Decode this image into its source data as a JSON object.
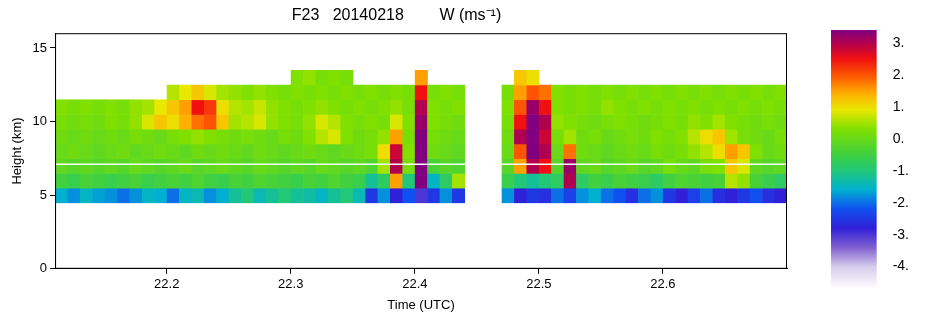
{
  "chart_data": {
    "type": "heatmap",
    "title": "F23   20140218        W (ms⁻¹)",
    "x_label": "Time (UTC)",
    "y_label": "Height (km)",
    "xlim": [
      22.11,
      22.7
    ],
    "xticks": [
      22.2,
      22.3,
      22.4,
      22.5,
      22.6
    ],
    "ylim": [
      0,
      16
    ],
    "yticks": [
      0,
      5,
      10,
      15
    ],
    "grid": false,
    "legend": false,
    "flight_level": 7.1,
    "x": [
      22.115,
      22.125,
      22.135,
      22.145,
      22.155,
      22.165,
      22.175,
      22.185,
      22.195,
      22.205,
      22.215,
      22.225,
      22.235,
      22.245,
      22.255,
      22.265,
      22.275,
      22.285,
      22.295,
      22.305,
      22.315,
      22.325,
      22.335,
      22.345,
      22.355,
      22.365,
      22.375,
      22.385,
      22.395,
      22.405,
      22.415,
      22.425,
      22.435,
      22.445,
      22.455,
      22.465,
      22.475,
      22.485,
      22.495,
      22.505,
      22.515,
      22.525,
      22.535,
      22.545,
      22.555,
      22.565,
      22.575,
      22.585,
      22.595,
      22.605,
      22.615,
      22.625,
      22.635,
      22.645,
      22.655,
      22.665,
      22.675,
      22.685,
      22.695
    ],
    "y": [
      5,
      6,
      7,
      8,
      9,
      10,
      11,
      12,
      13
    ],
    "values": [
      [
        -1.6,
        -1.8,
        -1.5,
        -1.7,
        -1.8,
        -2.0,
        -1.8,
        -1.5,
        -1.6,
        -2.0,
        -1.5,
        -1.4,
        -1.8,
        -1.6,
        -1.2,
        -1.0,
        -1.4,
        -1.2,
        -1.0,
        -1.2,
        -1.3,
        -1.5,
        -1.2,
        -1.0,
        -1.4,
        -2.5,
        -1.8,
        -2.8,
        -2.2,
        -3.0,
        -2.5,
        -1.8,
        -2.5,
        null,
        null,
        null,
        -1.8,
        -2.8,
        -2.5,
        -2.6,
        -2.0,
        -2.4,
        -1.8,
        -1.6,
        -2.0,
        -2.2,
        -2.6,
        -2.0,
        -1.8,
        -2.5,
        -2.8,
        -2.4,
        -2.0,
        -2.6,
        -2.8,
        -2.5,
        -2.2,
        -2.6,
        -2.8
      ],
      [
        -0.5,
        -0.6,
        -0.4,
        -0.5,
        -0.6,
        -0.5,
        -0.4,
        -0.6,
        -0.5,
        -0.4,
        -0.5,
        -0.3,
        -0.5,
        -0.6,
        -0.4,
        -0.5,
        -0.3,
        -0.4,
        -0.5,
        -0.6,
        -0.4,
        -0.5,
        -0.3,
        -0.5,
        -0.6,
        -1.2,
        -0.8,
        1.5,
        -1.0,
        3.5,
        -1.5,
        -0.8,
        0.5,
        null,
        null,
        null,
        -0.6,
        -1.0,
        -1.2,
        -1.0,
        -0.8,
        3.0,
        -0.8,
        -0.5,
        -0.6,
        -0.4,
        -0.5,
        -0.6,
        -0.8,
        -0.5,
        -0.3,
        -0.4,
        -0.5,
        -0.4,
        0.6,
        0.4,
        -0.4,
        -0.6,
        -0.8
      ],
      [
        -0.1,
        -0.2,
        -0.1,
        -0.2,
        -0.1,
        -0.2,
        0.0,
        -0.1,
        -0.2,
        -0.1,
        0.0,
        -0.2,
        -0.1,
        0.0,
        -0.1,
        -0.2,
        0.0,
        -0.1,
        -0.2,
        -0.1,
        -0.2,
        0.0,
        -0.1,
        -0.2,
        -0.1,
        -0.3,
        0.5,
        3.0,
        0.2,
        3.5,
        -0.4,
        -0.2,
        -0.3,
        null,
        null,
        null,
        -0.2,
        1.5,
        3.0,
        2.5,
        -0.2,
        3.2,
        -0.1,
        0.0,
        -0.2,
        -0.1,
        0.0,
        -0.2,
        -0.1,
        0.2,
        0.0,
        -0.1,
        0.2,
        0.3,
        1.2,
        0.8,
        -0.1,
        -0.2,
        -0.1
      ],
      [
        0.0,
        0.1,
        0.0,
        -0.1,
        0.0,
        0.1,
        -0.1,
        0.0,
        0.1,
        0.0,
        -0.1,
        0.1,
        0.0,
        0.1,
        0.0,
        -0.1,
        0.1,
        0.0,
        -0.1,
        0.0,
        0.1,
        0.0,
        -0.1,
        0.0,
        0.1,
        0.2,
        1.0,
        2.8,
        0.3,
        3.5,
        0.1,
        0.0,
        -0.1,
        null,
        null,
        null,
        0.0,
        2.0,
        3.5,
        3.0,
        0.0,
        1.8,
        0.1,
        0.0,
        -0.1,
        0.0,
        0.1,
        0.0,
        0.2,
        0.1,
        0.2,
        0.4,
        0.6,
        1.0,
        1.5,
        1.2,
        0.3,
        0.0,
        0.1
      ],
      [
        0.1,
        0.0,
        0.1,
        0.0,
        0.1,
        0.0,
        0.2,
        0.1,
        0.0,
        0.2,
        0.3,
        0.4,
        0.3,
        0.2,
        0.1,
        0.2,
        0.1,
        0.0,
        0.2,
        0.1,
        0.3,
        0.6,
        0.8,
        0.3,
        0.1,
        0.2,
        0.4,
        1.5,
        0.2,
        3.5,
        0.2,
        0.1,
        0.0,
        null,
        null,
        null,
        0.1,
        3.0,
        3.5,
        2.8,
        0.2,
        0.5,
        0.1,
        0.2,
        0.0,
        0.1,
        0.2,
        0.1,
        0.3,
        0.2,
        0.3,
        0.6,
        1.0,
        1.2,
        0.5,
        0.2,
        0.1,
        0.0,
        0.2
      ],
      [
        0.2,
        0.1,
        0.2,
        0.1,
        0.3,
        0.2,
        0.4,
        0.8,
        1.2,
        1.0,
        1.4,
        1.8,
        2.0,
        1.2,
        0.5,
        0.6,
        0.8,
        0.4,
        0.3,
        0.2,
        0.4,
        0.8,
        0.6,
        0.3,
        0.2,
        0.3,
        0.2,
        0.8,
        0.3,
        3.2,
        0.3,
        0.2,
        0.1,
        null,
        null,
        null,
        0.2,
        2.5,
        3.5,
        3.0,
        0.4,
        0.3,
        0.2,
        0.1,
        0.2,
        0.3,
        0.2,
        0.1,
        0.2,
        0.3,
        0.2,
        0.4,
        0.3,
        0.5,
        0.3,
        0.2,
        0.1,
        0.2,
        0.1
      ],
      [
        0.3,
        0.2,
        0.3,
        0.2,
        0.3,
        0.2,
        0.4,
        0.5,
        0.9,
        1.2,
        1.5,
        2.5,
        2.2,
        1.0,
        0.6,
        0.5,
        0.7,
        0.4,
        0.3,
        0.2,
        0.3,
        0.4,
        0.3,
        0.2,
        0.3,
        0.2,
        0.3,
        0.4,
        0.2,
        3.0,
        0.3,
        0.2,
        0.3,
        null,
        null,
        null,
        0.3,
        2.0,
        3.2,
        2.5,
        0.3,
        0.2,
        0.3,
        0.2,
        0.4,
        0.3,
        0.2,
        0.3,
        0.2,
        0.3,
        0.2,
        0.3,
        0.2,
        0.3,
        0.2,
        0.3,
        0.2,
        0.3,
        0.2
      ],
      [
        null,
        null,
        null,
        null,
        null,
        null,
        null,
        null,
        null,
        0.6,
        0.9,
        1.2,
        0.8,
        0.5,
        0.4,
        0.3,
        0.4,
        0.3,
        0.2,
        0.3,
        0.2,
        0.3,
        0.2,
        0.3,
        0.2,
        0.3,
        0.2,
        0.3,
        0.2,
        2.5,
        0.2,
        0.3,
        0.2,
        null,
        null,
        null,
        0.2,
        1.5,
        2.0,
        1.8,
        0.3,
        0.2,
        0.3,
        0.2,
        0.3,
        0.2,
        0.3,
        0.2,
        0.3,
        0.2,
        0.3,
        0.2,
        0.3,
        0.2,
        0.3,
        0.2,
        0.3,
        0.2,
        0.3
      ],
      [
        null,
        null,
        null,
        null,
        null,
        null,
        null,
        null,
        null,
        null,
        null,
        null,
        null,
        null,
        null,
        null,
        null,
        null,
        null,
        0.3,
        0.4,
        0.2,
        0.3,
        0.2,
        null,
        null,
        null,
        null,
        null,
        1.5,
        null,
        null,
        null,
        null,
        null,
        null,
        null,
        1.2,
        1.0,
        null,
        null,
        null,
        null,
        null,
        null,
        null,
        null,
        null,
        null,
        null,
        null,
        null,
        null,
        null,
        null,
        null,
        null,
        null,
        null
      ]
    ],
    "colorbar": {
      "range": [
        -4.7,
        3.4
      ],
      "ticks": [
        {
          "value": 3,
          "label": "3."
        },
        {
          "value": 2,
          "label": "2."
        },
        {
          "value": 1,
          "label": "1."
        },
        {
          "value": 0,
          "label": "0."
        },
        {
          "value": -1,
          "label": "-1."
        },
        {
          "value": -2,
          "label": "-2."
        },
        {
          "value": -3,
          "label": "-3."
        },
        {
          "value": -4,
          "label": "-4."
        }
      ]
    }
  }
}
